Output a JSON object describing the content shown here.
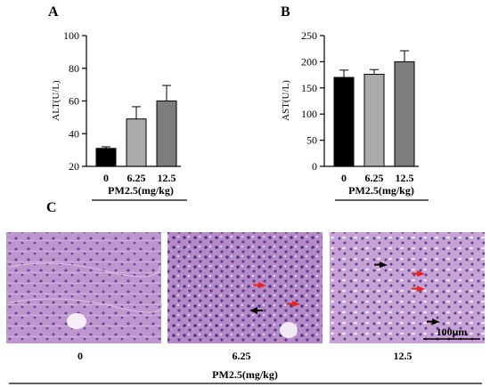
{
  "panels": {
    "a": "A",
    "b": "B",
    "c": "C"
  },
  "chart_data": [
    {
      "type": "bar",
      "panel": "A",
      "categories": [
        "0",
        "6.25",
        "12.5"
      ],
      "values": [
        31,
        49,
        60
      ],
      "errors": [
        1,
        7.5,
        9.5
      ],
      "colors": [
        "#000000",
        "#ababab",
        "#7d7d7d"
      ],
      "ylabel": "ALT(U/L)",
      "xlabel": "PM2.5(mg/kg)",
      "ylim": [
        20,
        100
      ],
      "yticks": [
        "20",
        "40",
        "60",
        "80",
        "100"
      ]
    },
    {
      "type": "bar",
      "panel": "B",
      "categories": [
        "0",
        "6.25",
        "12.5"
      ],
      "values": [
        170,
        176,
        200
      ],
      "errors": [
        14,
        9,
        21
      ],
      "colors": [
        "#000000",
        "#ababab",
        "#7d7d7d"
      ],
      "ylabel": "AST(U/L)",
      "xlabel": "PM2.5(mg/kg)",
      "ylim": [
        0,
        250
      ],
      "yticks": [
        "0",
        "50",
        "100",
        "150",
        "200",
        "250"
      ]
    }
  ],
  "histology": {
    "labels": [
      "0",
      "6.25",
      "12.5"
    ],
    "xlabel": "PM2.5(mg/kg)",
    "scale_bar": "100μm",
    "tissue_color": "#b98fc7",
    "nuclei_color": "#5a3a8c",
    "arrow_colors": {
      "black": "#000000",
      "red": "#e8241f"
    }
  }
}
